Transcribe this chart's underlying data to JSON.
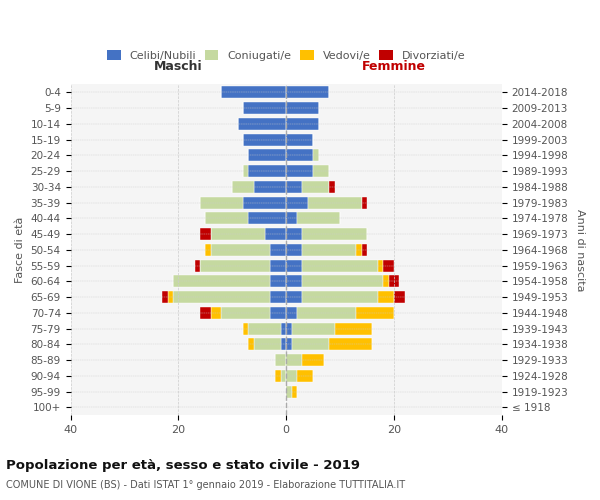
{
  "age_groups": [
    "100+",
    "95-99",
    "90-94",
    "85-89",
    "80-84",
    "75-79",
    "70-74",
    "65-69",
    "60-64",
    "55-59",
    "50-54",
    "45-49",
    "40-44",
    "35-39",
    "30-34",
    "25-29",
    "20-24",
    "15-19",
    "10-14",
    "5-9",
    "0-4"
  ],
  "birth_years": [
    "≤ 1918",
    "1919-1923",
    "1924-1928",
    "1929-1933",
    "1934-1938",
    "1939-1943",
    "1944-1948",
    "1949-1953",
    "1954-1958",
    "1959-1963",
    "1964-1968",
    "1969-1973",
    "1974-1978",
    "1979-1983",
    "1984-1988",
    "1989-1993",
    "1994-1998",
    "1999-2003",
    "2004-2008",
    "2009-2013",
    "2014-2018"
  ],
  "maschi": {
    "celibi": [
      0,
      0,
      0,
      0,
      1,
      1,
      3,
      3,
      3,
      3,
      3,
      4,
      7,
      8,
      6,
      7,
      7,
      8,
      9,
      8,
      12
    ],
    "coniugati": [
      0,
      0,
      1,
      2,
      5,
      6,
      9,
      18,
      18,
      13,
      11,
      10,
      8,
      8,
      4,
      1,
      0,
      0,
      0,
      0,
      0
    ],
    "vedovi": [
      0,
      0,
      1,
      0,
      1,
      1,
      2,
      1,
      0,
      0,
      1,
      0,
      0,
      0,
      0,
      0,
      0,
      0,
      0,
      0,
      0
    ],
    "divorziati": [
      0,
      0,
      0,
      0,
      0,
      0,
      2,
      1,
      0,
      1,
      0,
      2,
      0,
      0,
      0,
      0,
      0,
      0,
      0,
      0,
      0
    ]
  },
  "femmine": {
    "nubili": [
      0,
      0,
      0,
      0,
      1,
      1,
      2,
      3,
      3,
      3,
      3,
      3,
      2,
      4,
      3,
      5,
      5,
      5,
      6,
      6,
      8
    ],
    "coniugate": [
      0,
      1,
      2,
      3,
      7,
      8,
      11,
      14,
      15,
      14,
      10,
      12,
      8,
      10,
      5,
      3,
      1,
      0,
      0,
      0,
      0
    ],
    "vedove": [
      0,
      1,
      3,
      4,
      8,
      7,
      7,
      3,
      1,
      1,
      1,
      0,
      0,
      0,
      0,
      0,
      0,
      0,
      0,
      0,
      0
    ],
    "divorziate": [
      0,
      0,
      0,
      0,
      0,
      0,
      0,
      2,
      2,
      2,
      1,
      0,
      0,
      1,
      1,
      0,
      0,
      0,
      0,
      0,
      0
    ]
  },
  "colors": {
    "celibi_nubili": "#4472c4",
    "coniugati": "#c5d9a0",
    "vedovi": "#ffc000",
    "divorziati": "#c00000"
  },
  "title": "Popolazione per età, sesso e stato civile - 2019",
  "subtitle": "COMUNE DI VIONE (BS) - Dati ISTAT 1° gennaio 2019 - Elaborazione TUTTITALIA.IT",
  "xlabel_left": "Maschi",
  "xlabel_right": "Femmine",
  "ylabel_left": "Fasce di età",
  "ylabel_right": "Anni di nascita",
  "xlim": 40,
  "legend_labels": [
    "Celibi/Nubili",
    "Coniugati/e",
    "Vedovi/e",
    "Divorziati/e"
  ],
  "bg_color": "#ffffff",
  "plot_bg": "#f5f5f5"
}
